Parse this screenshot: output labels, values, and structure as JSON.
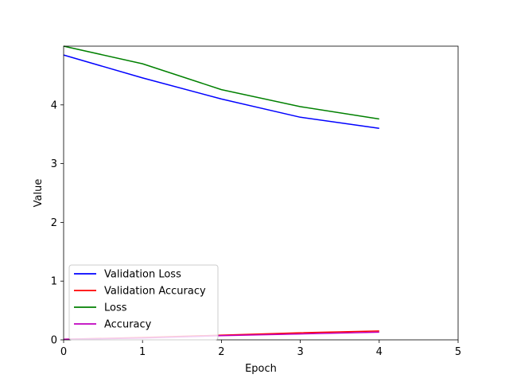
{
  "chart_data": {
    "type": "line",
    "title": "",
    "xlabel": "Epoch",
    "ylabel": "Value",
    "xlim": [
      0,
      5
    ],
    "ylim": [
      0,
      5
    ],
    "x_ticks": [
      0,
      1,
      2,
      3,
      4,
      5
    ],
    "y_ticks": [
      0,
      1,
      2,
      3,
      4
    ],
    "grid": false,
    "legend_position": "lower-left",
    "x": [
      0,
      1,
      2,
      3,
      4
    ],
    "series": [
      {
        "name": "Validation Loss",
        "color": "#0000ff",
        "values": [
          4.85,
          4.46,
          4.1,
          3.79,
          3.6
        ]
      },
      {
        "name": "Validation Accuracy",
        "color": "#ff0000",
        "values": [
          0.01,
          0.04,
          0.08,
          0.12,
          0.15
        ]
      },
      {
        "name": "Loss",
        "color": "#008000",
        "values": [
          5.0,
          4.7,
          4.26,
          3.97,
          3.76
        ]
      },
      {
        "name": "Accuracy",
        "color": "#bf00bf",
        "values": [
          0.01,
          0.03,
          0.07,
          0.1,
          0.13
        ]
      }
    ]
  }
}
